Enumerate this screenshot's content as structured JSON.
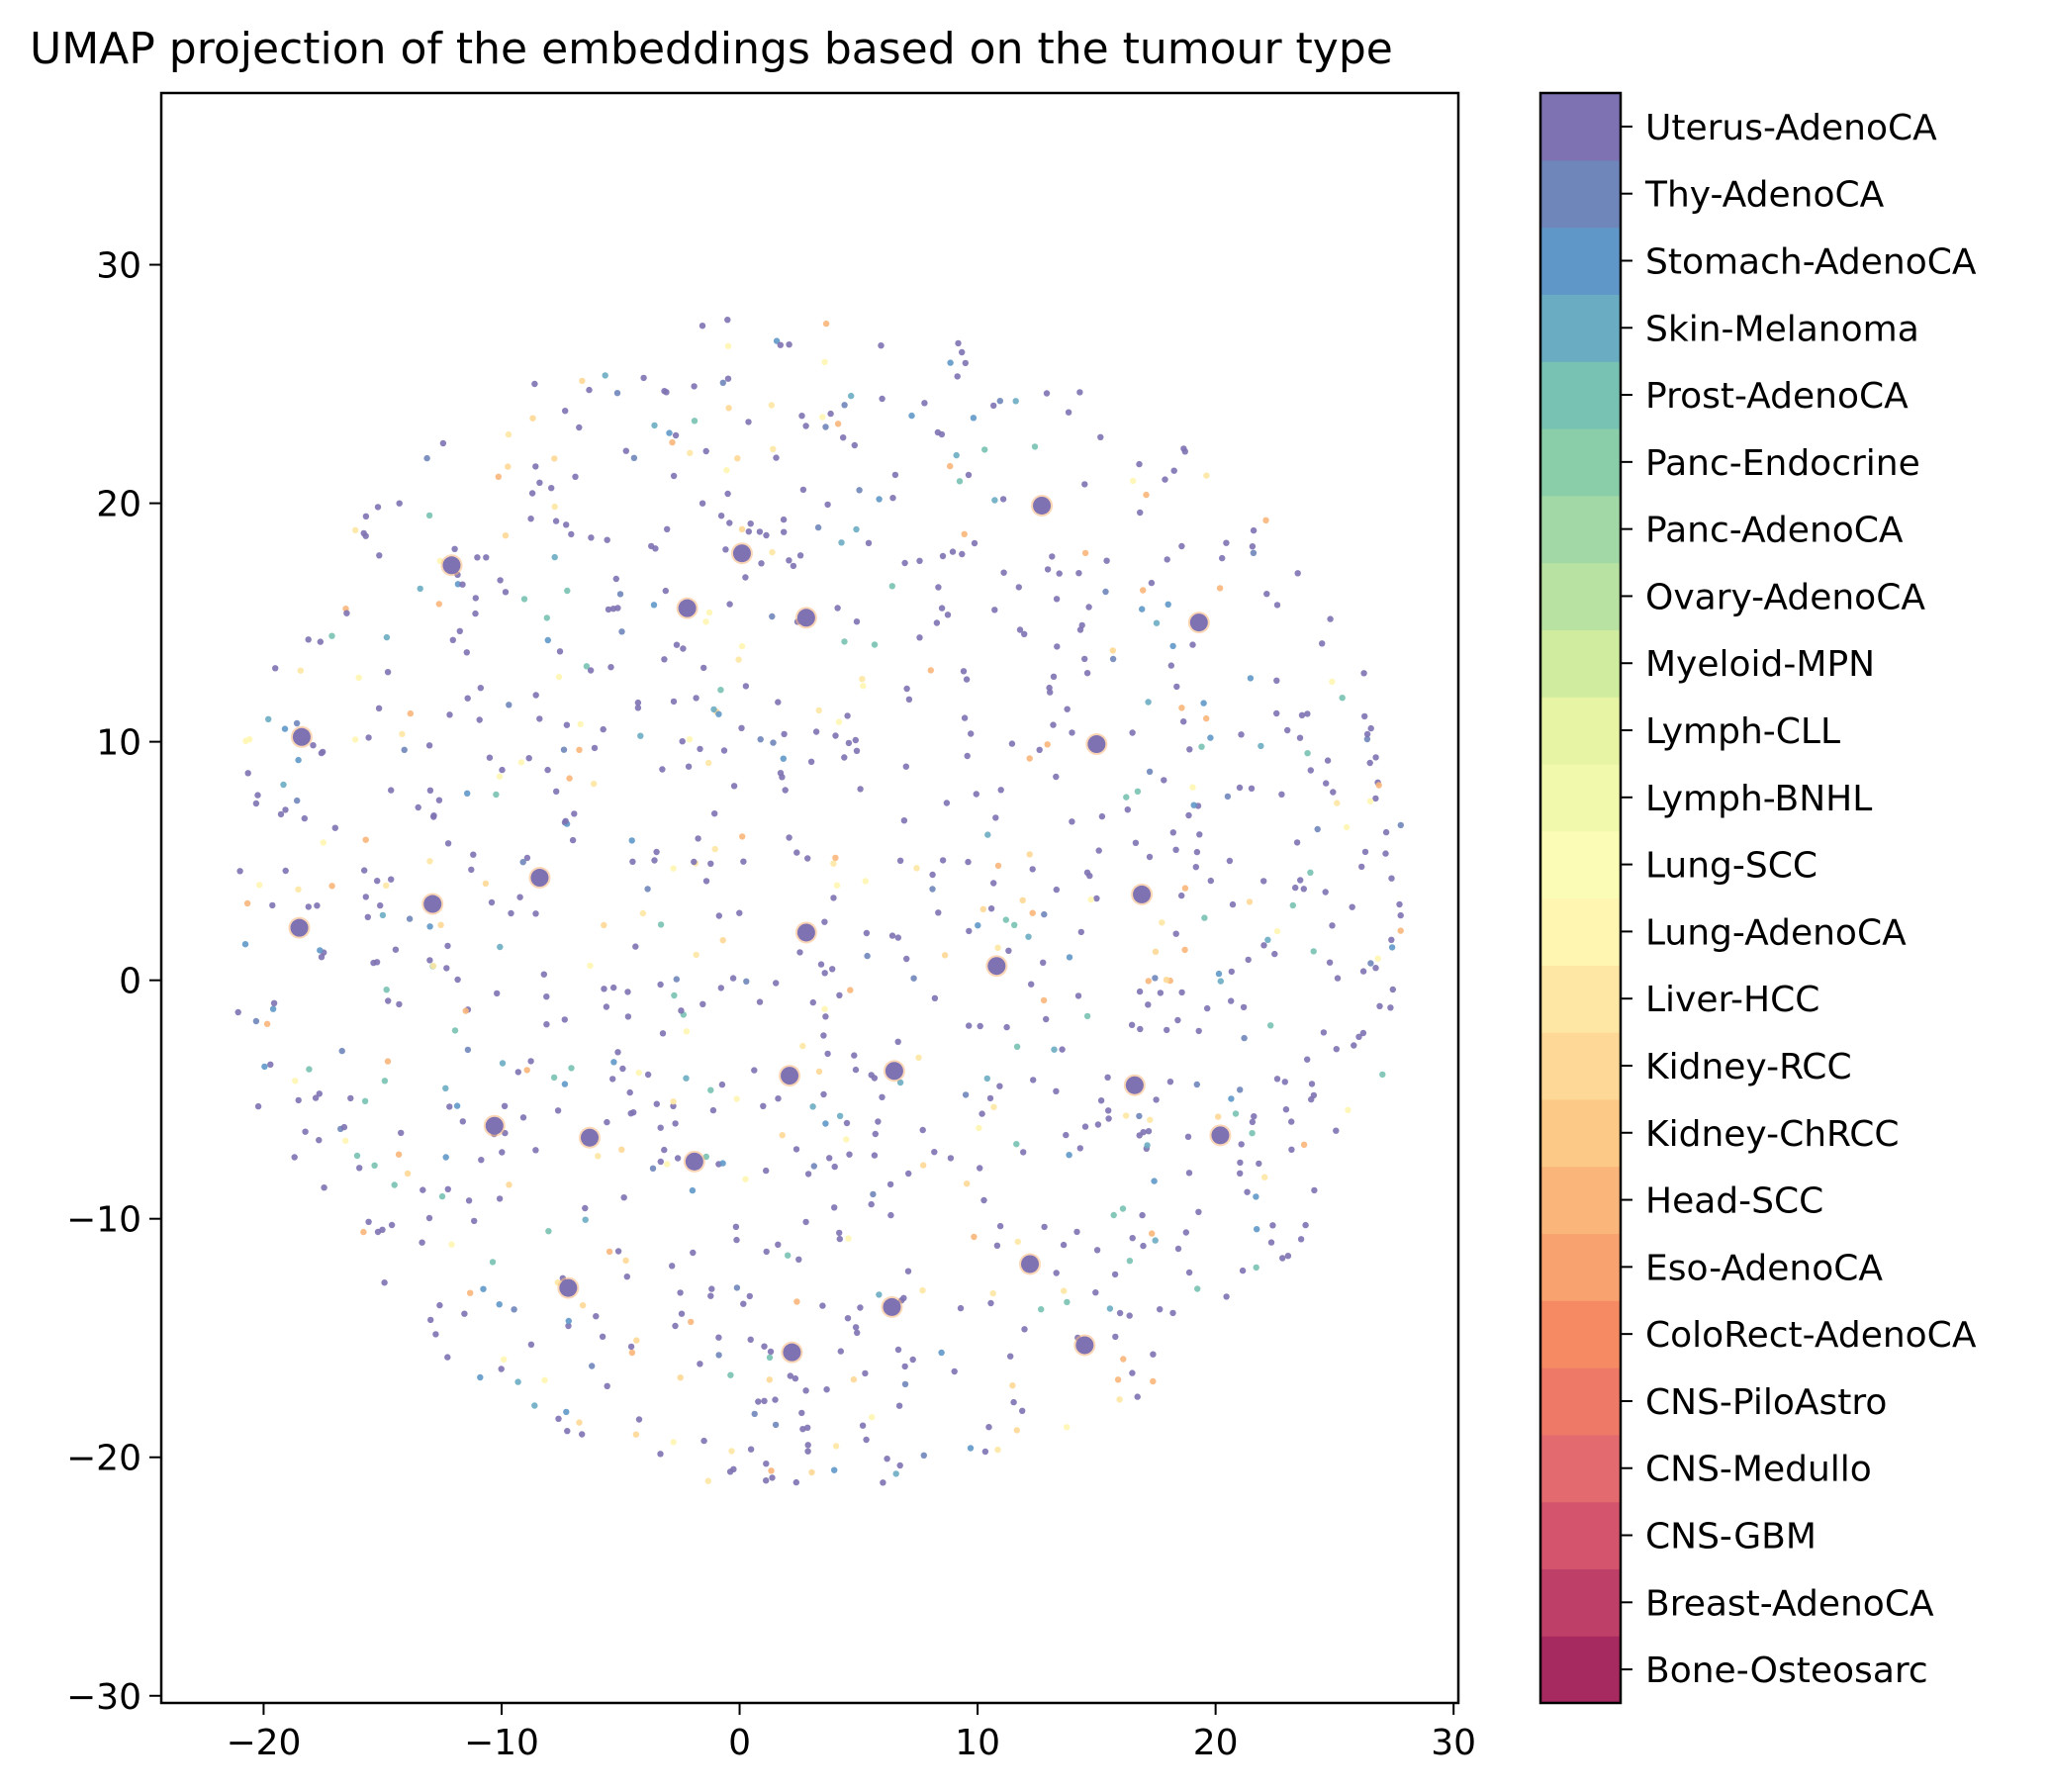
{
  "chart_data": {
    "type": "scatter",
    "title": "UMAP projection of the embeddings based on the tumour type",
    "xlabel": "",
    "ylabel": "",
    "xlim": [
      -24.3,
      30.2
    ],
    "ylim": [
      -30.3,
      37.2
    ],
    "x_ticks": [
      -20,
      -10,
      0,
      10,
      20,
      30
    ],
    "x_tick_labels": [
      "−20",
      "−10",
      "0",
      "10",
      "20",
      "30"
    ],
    "y_ticks": [
      -30,
      -20,
      -10,
      0,
      10,
      20,
      30
    ],
    "y_tick_labels": [
      "−30",
      "−20",
      "−10",
      "0",
      "10",
      "20",
      "30"
    ],
    "grid": false,
    "colormap": "Spectral",
    "colorbar": {
      "labels": [
        "Bone-Osteosarc",
        "Breast-AdenoCA",
        "CNS-GBM",
        "CNS-Medullo",
        "CNS-PiloAstro",
        "ColoRect-AdenoCA",
        "Eso-AdenoCA",
        "Head-SCC",
        "Kidney-ChRCC",
        "Kidney-RCC",
        "Liver-HCC",
        "Lung-AdenoCA",
        "Lung-SCC",
        "Lymph-BNHL",
        "Lymph-CLL",
        "Myeloid-MPN",
        "Ovary-AdenoCA",
        "Panc-AdenoCA",
        "Panc-Endocrine",
        "Prost-AdenoCA",
        "Skin-Melanoma",
        "Stomach-AdenoCA",
        "Thy-AdenoCA",
        "Uterus-AdenoCA"
      ],
      "colors": [
        "#a6295f",
        "#be3f68",
        "#d3546c",
        "#e36a6e",
        "#ee7966",
        "#f58a63",
        "#f8a26f",
        "#fab67a",
        "#fcc986",
        "#fed896",
        "#fee7a4",
        "#fff6b2",
        "#fbfdb6",
        "#f1f9ad",
        "#e6f4a4",
        "#d0ec9f",
        "#b8e2a2",
        "#a2d8a6",
        "#89cea9",
        "#78c2b3",
        "#6aacc2",
        "#5f98c8",
        "#6f86ba",
        "#7e72b2"
      ]
    },
    "clusters": [
      {
        "x": 10.8,
        "y": 0.6
      },
      {
        "x": 2.8,
        "y": 2.0
      },
      {
        "x": -7.2,
        "y": -12.9
      },
      {
        "x": -6.3,
        "y": -6.6
      },
      {
        "x": 6.5,
        "y": -3.8
      },
      {
        "x": 19.3,
        "y": 15.0
      },
      {
        "x": 12.7,
        "y": 19.9
      },
      {
        "x": 16.9,
        "y": 3.6
      },
      {
        "x": 15.0,
        "y": 9.9
      },
      {
        "x": -8.4,
        "y": 4.3
      },
      {
        "x": -12.9,
        "y": 3.2
      },
      {
        "x": -18.5,
        "y": 2.2
      },
      {
        "x": 2.1,
        "y": -4.0
      },
      {
        "x": -1.9,
        "y": -7.6
      },
      {
        "x": 6.4,
        "y": -13.7
      },
      {
        "x": 12.2,
        "y": -11.9
      },
      {
        "x": 2.2,
        "y": -15.6
      },
      {
        "x": -12.1,
        "y": 17.4
      },
      {
        "x": -18.4,
        "y": 10.2
      },
      {
        "x": 20.2,
        "y": -6.5
      },
      {
        "x": 16.6,
        "y": -4.4
      },
      {
        "x": 14.5,
        "y": -15.3
      },
      {
        "x": -10.3,
        "y": -6.1
      },
      {
        "x": 2.8,
        "y": 15.2
      },
      {
        "x": 0.1,
        "y": 17.9
      },
      {
        "x": -2.2,
        "y": 15.6
      }
    ],
    "n_points": 1100,
    "point_dominant_class": "Uterus-AdenoCA"
  }
}
